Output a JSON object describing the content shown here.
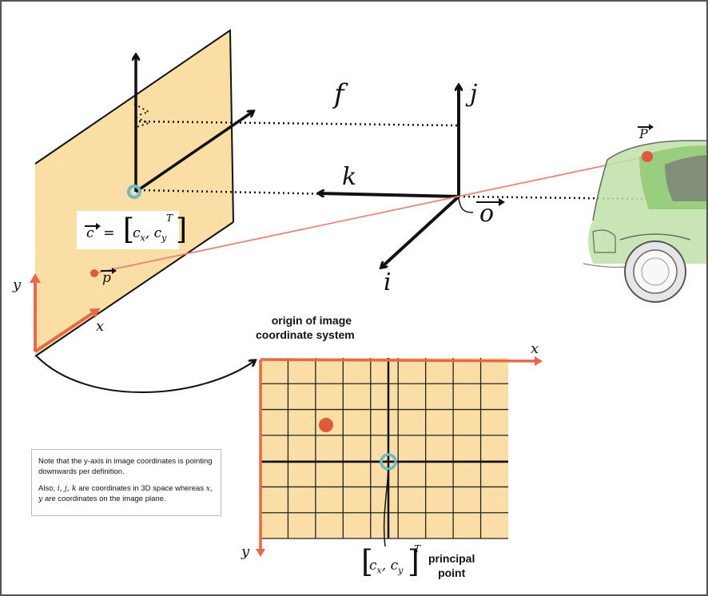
{
  "colors": {
    "axis_orange": "#e8694a",
    "image_fill": "#f6c566",
    "principal_circle": "#6fb7c9",
    "point_red": "#e05a3a",
    "car_green": "#8cc870",
    "ray": "#e8867a"
  },
  "labels_3d": {
    "focal": "f",
    "j_axis": "j",
    "k_axis": "k",
    "i_axis": "i",
    "origin": "o",
    "world_point": "P",
    "image_point": "p",
    "c_prime": "c",
    "c_prime_suffix": "′ = ",
    "cx": "c",
    "cx_sub": "x",
    "cy": "c",
    "cy_sub": "y",
    "transpose": "T",
    "y_axis": "y",
    "x_axis": "x"
  },
  "image_plane": {
    "origin_label_line1": "origin of image",
    "origin_label_line2": "coordinate system",
    "x_axis": "x",
    "y_axis": "y",
    "principal_line1": "principal",
    "principal_line2": "point",
    "cx": "c",
    "cx_sub": "x",
    "cy": "c",
    "cy_sub": "y",
    "transpose": "T",
    "grid_cols": 9,
    "grid_rows": 7
  },
  "note": {
    "line1": "Note that the y-axis in image coordinates is pointing downwards per definition.",
    "line2_pre": "Also, ",
    "line2_vars": "i, j, k",
    "line2_mid": " are coordinates in 3D space whereas ",
    "line2_vars2": "x, y",
    "line2_post": " are coordinates on the image plane."
  }
}
